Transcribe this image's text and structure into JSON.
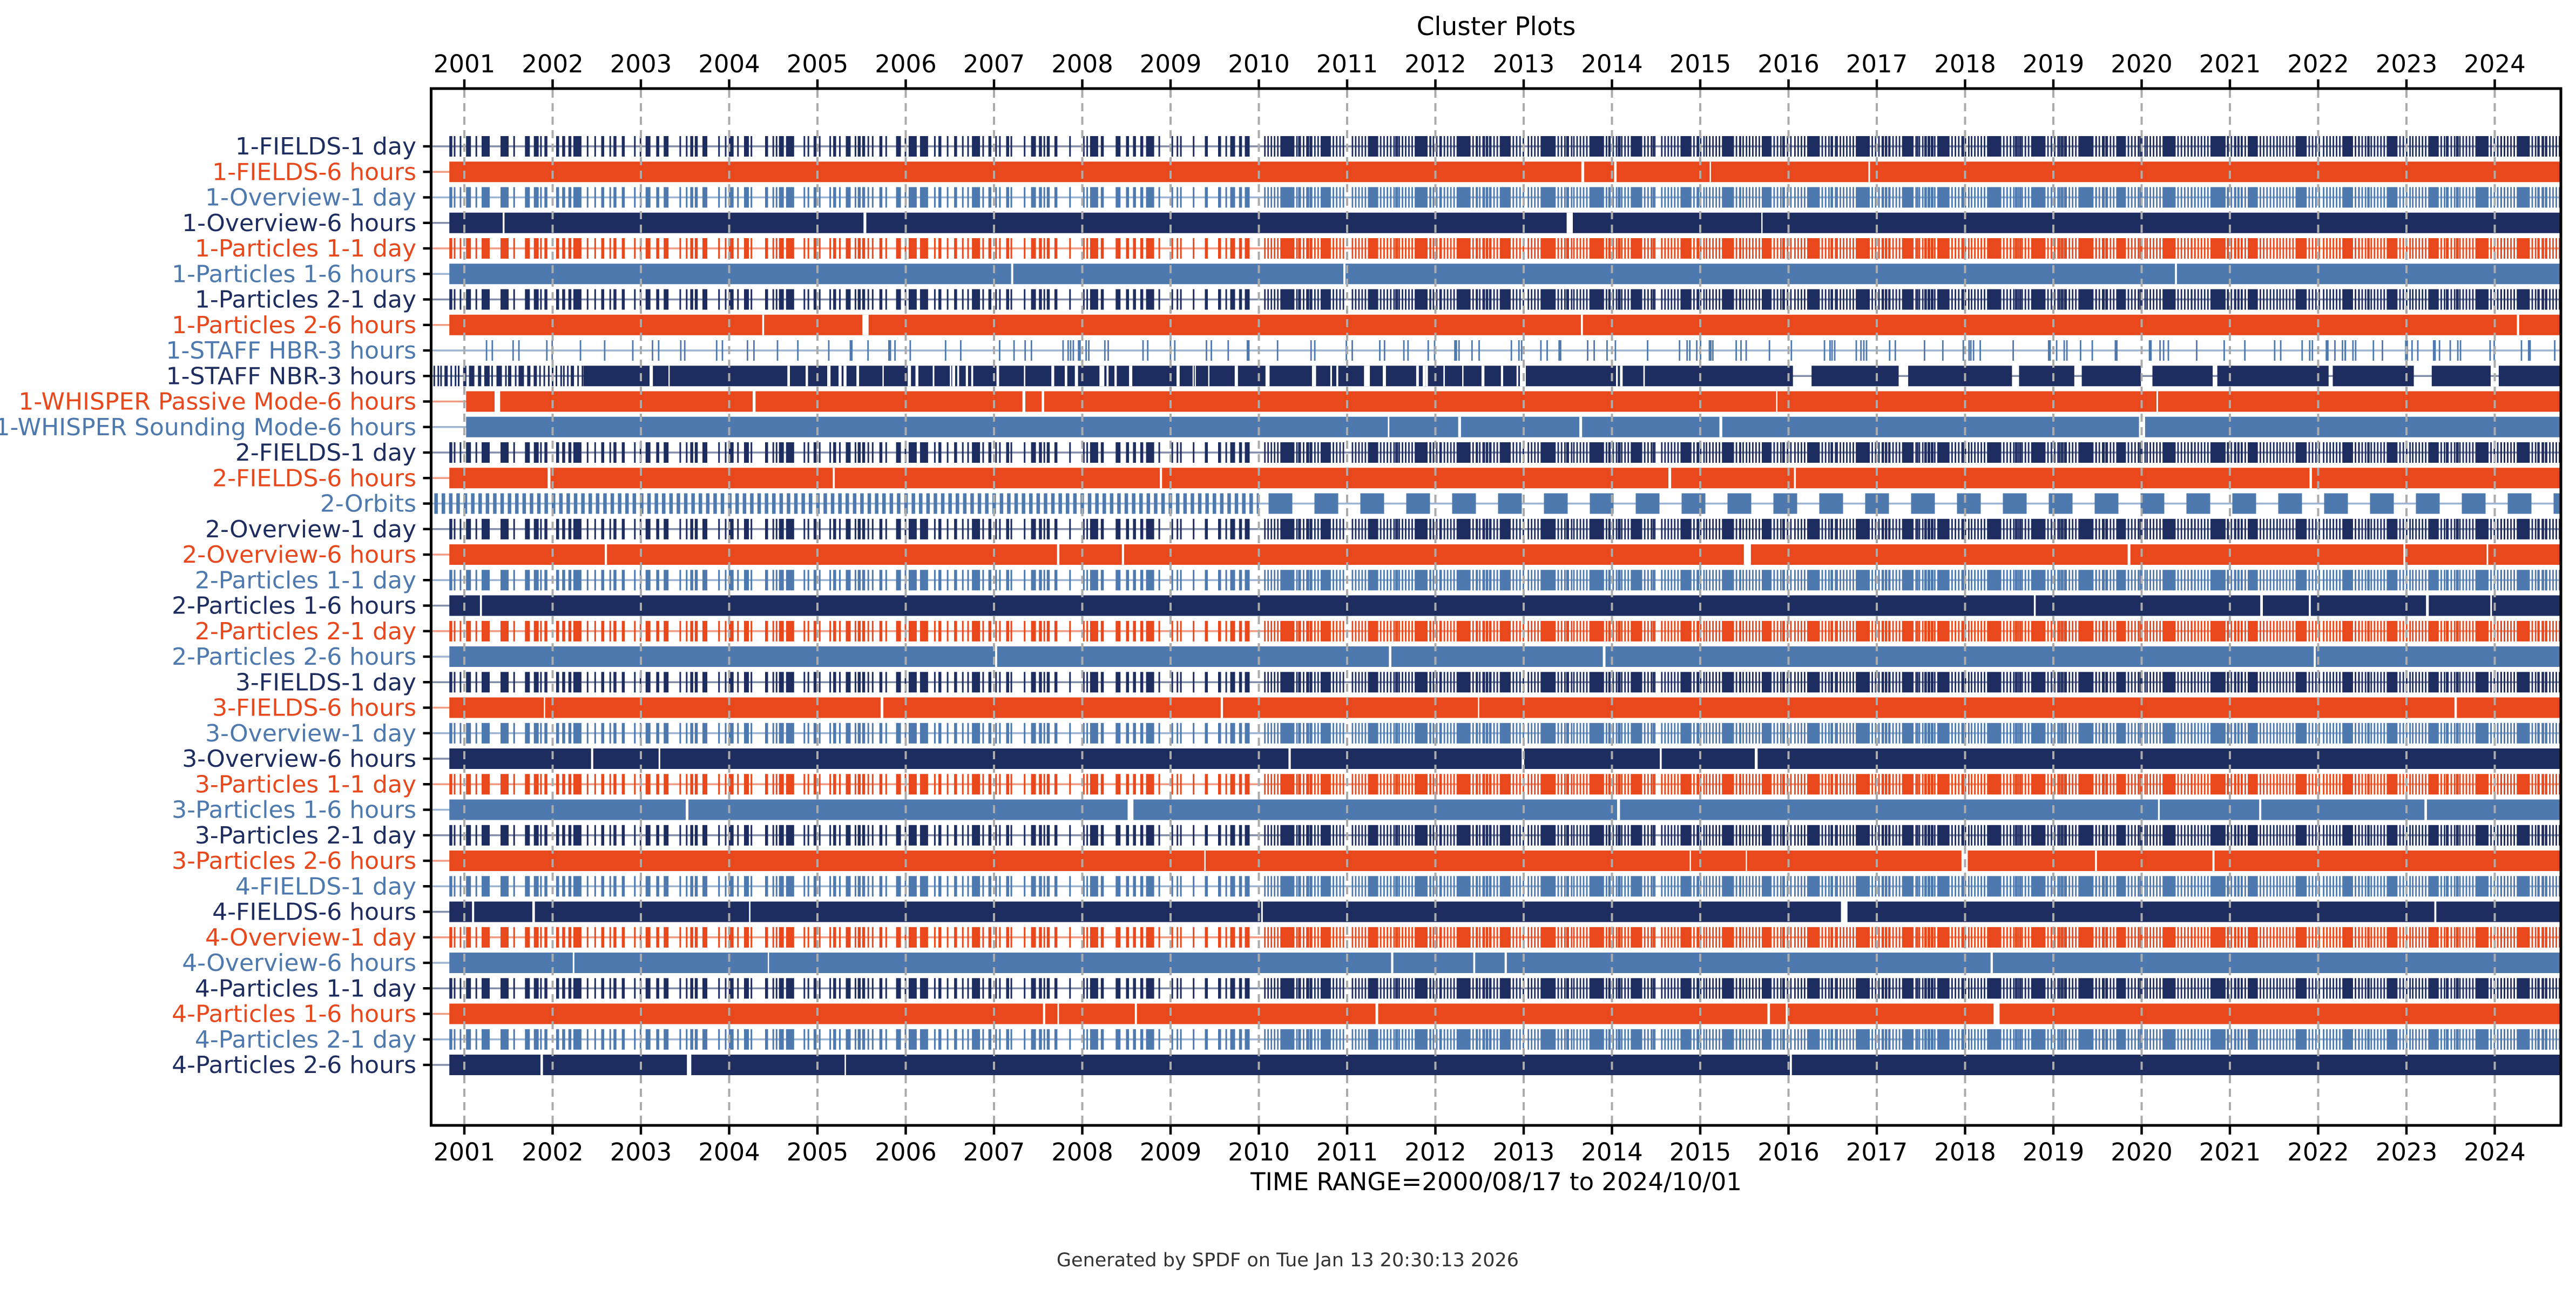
{
  "title": "Cluster Plots",
  "footer": {
    "time_range": "TIME RANGE=2000/08/17 to 2024/10/01",
    "generated": "Generated by SPDF on Tue Jan 13 20:30:13 2026"
  },
  "chart_data": {
    "type": "availability-timeline",
    "title": "Cluster Plots",
    "x_axis": {
      "tick_years": [
        2001,
        2002,
        2003,
        2004,
        2005,
        2006,
        2007,
        2008,
        2009,
        2010,
        2011,
        2012,
        2013,
        2014,
        2015,
        2016,
        2017,
        2018,
        2019,
        2020,
        2021,
        2022,
        2023,
        2024
      ],
      "start_date": "2000/08/17",
      "end_date": "2024/10/01",
      "start": 2000.6284,
      "end": 2024.7486,
      "pattern_change_year": 2010.0,
      "grid": "dashed-vertical-per-year"
    },
    "palette": {
      "navy": "#1e2d60",
      "orange": "#e8481b",
      "steel": "#4d79ae",
      "grid": "#ababab",
      "axis": "#000000",
      "background": "#ffffff",
      "footer_text": "#333333"
    },
    "row_defaults": {
      "start": 2000.83,
      "end": 2024.7486
    },
    "pattern_legend": {
      "barcode": "dense daily-file stripes before 2010, periodic orbit bursts (~0.5 yr) after 2010",
      "solid": "continuous coverage bar with occasional thin dropouts",
      "sparse": "scattered thin burst-mode marks over a faint baseline",
      "nbr": "dense stripes to ~2002.35, near-solid with thin gaps to ~2014.8, then broken blocks",
      "orbits": "regular per-orbit stripes before 2010, wide periodic blocks after 2010"
    },
    "rows": [
      {
        "label": "1-FIELDS-1 day",
        "color": "navy",
        "pattern": "barcode"
      },
      {
        "label": "1-FIELDS-6 hours",
        "color": "orange",
        "pattern": "solid"
      },
      {
        "label": "1-Overview-1 day",
        "color": "steel",
        "pattern": "barcode"
      },
      {
        "label": "1-Overview-6 hours",
        "color": "navy",
        "pattern": "solid"
      },
      {
        "label": "1-Particles 1-1 day",
        "color": "orange",
        "pattern": "barcode"
      },
      {
        "label": "1-Particles 1-6 hours",
        "color": "steel",
        "pattern": "solid"
      },
      {
        "label": "1-Particles 2-1 day",
        "color": "navy",
        "pattern": "barcode"
      },
      {
        "label": "1-Particles 2-6 hours",
        "color": "orange",
        "pattern": "solid"
      },
      {
        "label": "1-STAFF HBR-3 hours",
        "color": "steel",
        "pattern": "sparse",
        "start": 2000.75
      },
      {
        "label": "1-STAFF NBR-3 hours",
        "color": "navy",
        "pattern": "nbr",
        "start": 2000.65,
        "dense_until": 2002.35,
        "solid_until": 2014.8
      },
      {
        "label": "1-WHISPER Passive Mode-6 hours",
        "color": "orange",
        "pattern": "solid",
        "start": 2001.02
      },
      {
        "label": "1-WHISPER Sounding Mode-6 hours",
        "color": "steel",
        "pattern": "solid",
        "start": 2001.02
      },
      {
        "label": "2-FIELDS-1 day",
        "color": "navy",
        "pattern": "barcode"
      },
      {
        "label": "2-FIELDS-6 hours",
        "color": "orange",
        "pattern": "solid"
      },
      {
        "label": "2-Orbits",
        "color": "steel",
        "pattern": "orbits",
        "start": 2000.66
      },
      {
        "label": "2-Overview-1 day",
        "color": "navy",
        "pattern": "barcode"
      },
      {
        "label": "2-Overview-6 hours",
        "color": "orange",
        "pattern": "solid"
      },
      {
        "label": "2-Particles 1-1 day",
        "color": "steel",
        "pattern": "barcode"
      },
      {
        "label": "2-Particles 1-6 hours",
        "color": "navy",
        "pattern": "solid"
      },
      {
        "label": "2-Particles 2-1 day",
        "color": "orange",
        "pattern": "barcode"
      },
      {
        "label": "2-Particles 2-6 hours",
        "color": "steel",
        "pattern": "solid"
      },
      {
        "label": "3-FIELDS-1 day",
        "color": "navy",
        "pattern": "barcode"
      },
      {
        "label": "3-FIELDS-6 hours",
        "color": "orange",
        "pattern": "solid"
      },
      {
        "label": "3-Overview-1 day",
        "color": "steel",
        "pattern": "barcode"
      },
      {
        "label": "3-Overview-6 hours",
        "color": "navy",
        "pattern": "solid"
      },
      {
        "label": "3-Particles 1-1 day",
        "color": "orange",
        "pattern": "barcode"
      },
      {
        "label": "3-Particles 1-6 hours",
        "color": "steel",
        "pattern": "solid"
      },
      {
        "label": "3-Particles 2-1 day",
        "color": "navy",
        "pattern": "barcode"
      },
      {
        "label": "3-Particles 2-6 hours",
        "color": "orange",
        "pattern": "solid"
      },
      {
        "label": "4-FIELDS-1 day",
        "color": "steel",
        "pattern": "barcode"
      },
      {
        "label": "4-FIELDS-6 hours",
        "color": "navy",
        "pattern": "solid"
      },
      {
        "label": "4-Overview-1 day",
        "color": "orange",
        "pattern": "barcode"
      },
      {
        "label": "4-Overview-6 hours",
        "color": "steel",
        "pattern": "solid"
      },
      {
        "label": "4-Particles 1-1 day",
        "color": "navy",
        "pattern": "barcode"
      },
      {
        "label": "4-Particles 1-6 hours",
        "color": "orange",
        "pattern": "solid"
      },
      {
        "label": "4-Particles 2-1 day",
        "color": "steel",
        "pattern": "barcode"
      },
      {
        "label": "4-Particles 2-6 hours",
        "color": "navy",
        "pattern": "solid"
      }
    ]
  }
}
